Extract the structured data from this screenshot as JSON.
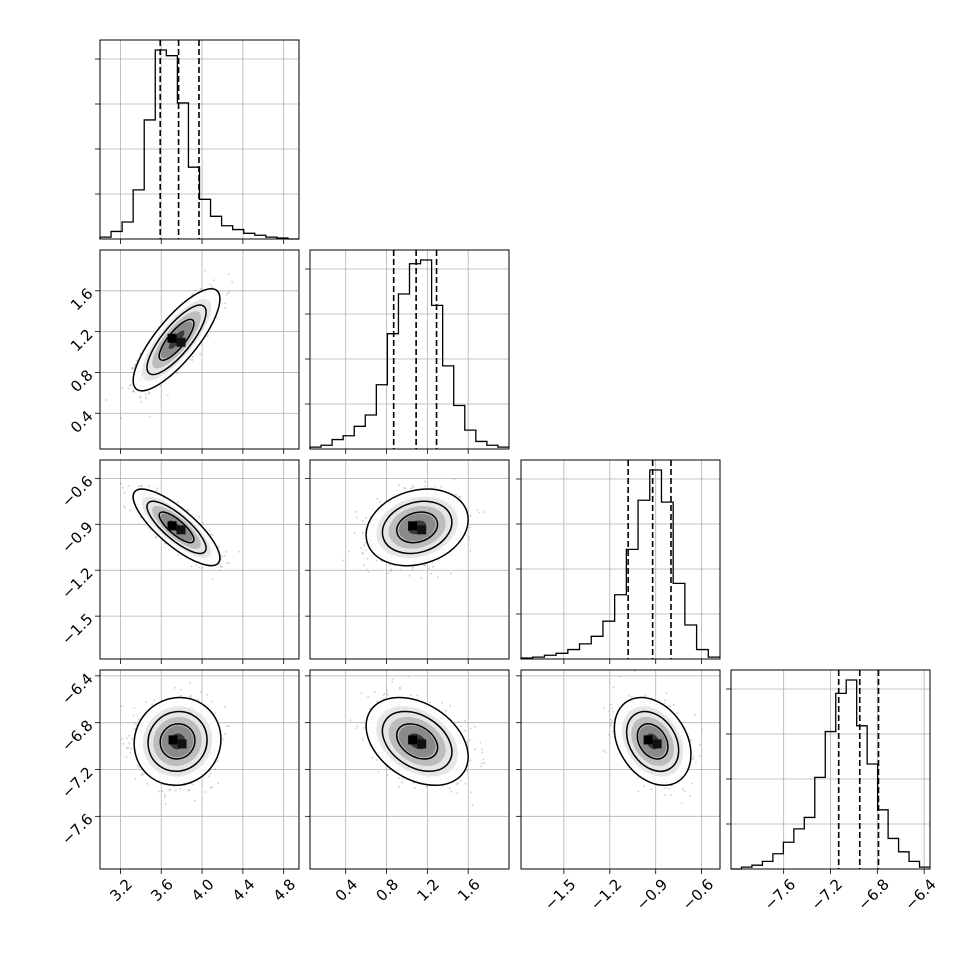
{
  "chart_data": {
    "type": "corner",
    "params": [
      {
        "range": [
          3.0,
          4.95
        ],
        "ticks": [
          "3.2",
          "3.6",
          "4.0",
          "4.4",
          "4.8"
        ],
        "quantiles": [
          3.59,
          3.77,
          3.97
        ],
        "hist": [
          0.01,
          0.04,
          0.09,
          0.26,
          0.63,
          1.0,
          0.97,
          0.72,
          0.38,
          0.21,
          0.12,
          0.07,
          0.05,
          0.03,
          0.02,
          0.01,
          0.005,
          0.0
        ]
      },
      {
        "range": [
          0.05,
          2.0
        ],
        "ticks": [
          "0.4",
          "0.8",
          "1.2",
          "1.6"
        ],
        "quantiles": [
          0.87,
          1.09,
          1.29
        ],
        "hist": [
          0.01,
          0.02,
          0.05,
          0.07,
          0.12,
          0.18,
          0.34,
          0.61,
          0.82,
          0.98,
          1.0,
          0.76,
          0.44,
          0.23,
          0.1,
          0.04,
          0.02,
          0.01
        ]
      },
      {
        "range": [
          -1.78,
          -0.48
        ],
        "ticks": [
          "−1.5",
          "−1.2",
          "−0.9",
          "−0.6"
        ],
        "quantiles": [
          -1.08,
          -0.92,
          -0.8
        ],
        "hist": [
          0.005,
          0.01,
          0.02,
          0.03,
          0.05,
          0.08,
          0.12,
          0.2,
          0.34,
          0.58,
          0.84,
          1.0,
          0.83,
          0.4,
          0.18,
          0.05,
          0.01
        ]
      },
      {
        "range": [
          -8.05,
          -6.35
        ],
        "ticks": [
          "−7.6",
          "−7.2",
          "−6.8",
          "−6.4"
        ],
        "quantiles": [
          -7.13,
          -6.95,
          -6.79
        ],
        "hist": [
          0.0,
          0.01,
          0.02,
          0.04,
          0.08,
          0.14,
          0.21,
          0.27,
          0.48,
          0.72,
          0.92,
          0.99,
          0.75,
          0.55,
          0.31,
          0.16,
          0.09,
          0.04,
          0.01
        ]
      }
    ],
    "pairs": [
      {
        "row": 1,
        "col": 0,
        "center": [
          3.75,
          1.12
        ],
        "spread": [
          0.17,
          0.2
        ],
        "rho": 0.8
      },
      {
        "row": 2,
        "col": 0,
        "center": [
          3.75,
          -0.92
        ],
        "spread": [
          0.17,
          0.1
        ],
        "rho": -0.8
      },
      {
        "row": 2,
        "col": 1,
        "center": [
          1.1,
          -0.92
        ],
        "spread": [
          0.2,
          0.1
        ],
        "rho": 0.2
      },
      {
        "row": 3,
        "col": 0,
        "center": [
          3.76,
          -6.96
        ],
        "spread": [
          0.17,
          0.15
        ],
        "rho": 0.05
      },
      {
        "row": 3,
        "col": 1,
        "center": [
          1.1,
          -6.96
        ],
        "spread": [
          0.2,
          0.15
        ],
        "rho": -0.35
      },
      {
        "row": 3,
        "col": 2,
        "center": [
          -0.92,
          -6.96
        ],
        "spread": [
          0.1,
          0.15
        ],
        "rho": -0.3
      }
    ]
  }
}
